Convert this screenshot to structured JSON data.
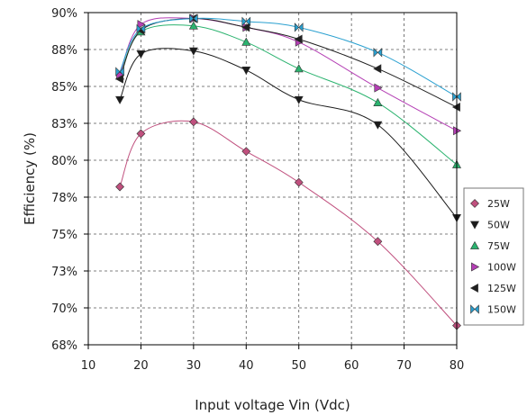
{
  "chart_data": {
    "type": "line",
    "title": "",
    "xlabel": "Input voltage Vin (Vdc)",
    "ylabel": "Efficiency (%)",
    "xlim": [
      10,
      80
    ],
    "ylim": [
      67.5,
      90
    ],
    "x_ticks": [
      10,
      20,
      30,
      40,
      50,
      60,
      70,
      80
    ],
    "y_ticks": [
      {
        "value": 90,
        "label": "90%"
      },
      {
        "value": 87.5,
        "label": "88%"
      },
      {
        "value": 85,
        "label": "85%"
      },
      {
        "value": 82.5,
        "label": "83%"
      },
      {
        "value": 80,
        "label": "80%"
      },
      {
        "value": 77.5,
        "label": "78%"
      },
      {
        "value": 75,
        "label": "75%"
      },
      {
        "value": 72.5,
        "label": "73%"
      },
      {
        "value": 70,
        "label": "70%"
      },
      {
        "value": 67.5,
        "label": "68%"
      }
    ],
    "grid": "dashed",
    "legend_position": "right",
    "series": [
      {
        "name": "25W",
        "marker": "diamond",
        "color": "#c0507e",
        "x": [
          16,
          20,
          30,
          40,
          50,
          65,
          80
        ],
        "y": [
          78.2,
          81.8,
          82.6,
          80.6,
          78.5,
          74.5,
          68.8
        ]
      },
      {
        "name": "50W",
        "marker": "triangle-down",
        "color": "#1a1a1a",
        "x": [
          16,
          20,
          30,
          40,
          50,
          65,
          80
        ],
        "y": [
          84.1,
          87.2,
          87.4,
          86.1,
          84.1,
          82.4,
          76.1
        ]
      },
      {
        "name": "75W",
        "marker": "triangle-up",
        "color": "#2bb36f",
        "x": [
          16,
          20,
          30,
          40,
          50,
          65,
          80
        ],
        "y": [
          85.7,
          88.7,
          89.1,
          88.0,
          86.2,
          83.9,
          79.7
        ]
      },
      {
        "name": "100W",
        "marker": "triangle-right",
        "color": "#b43fb4",
        "x": [
          16,
          20,
          30,
          40,
          50,
          65,
          80
        ],
        "y": [
          85.8,
          89.2,
          89.6,
          89.0,
          88.0,
          84.9,
          82.0
        ]
      },
      {
        "name": "125W",
        "marker": "triangle-left",
        "color": "#202020",
        "x": [
          16,
          20,
          30,
          40,
          50,
          65,
          80
        ],
        "y": [
          85.5,
          88.8,
          89.6,
          89.0,
          88.2,
          86.2,
          83.6
        ]
      },
      {
        "name": "150W",
        "marker": "bowtie",
        "color": "#2aa0d0",
        "x": [
          16,
          20,
          30,
          40,
          50,
          65,
          80
        ],
        "y": [
          86.0,
          88.9,
          89.6,
          89.4,
          89.0,
          87.3,
          84.3
        ]
      }
    ]
  }
}
